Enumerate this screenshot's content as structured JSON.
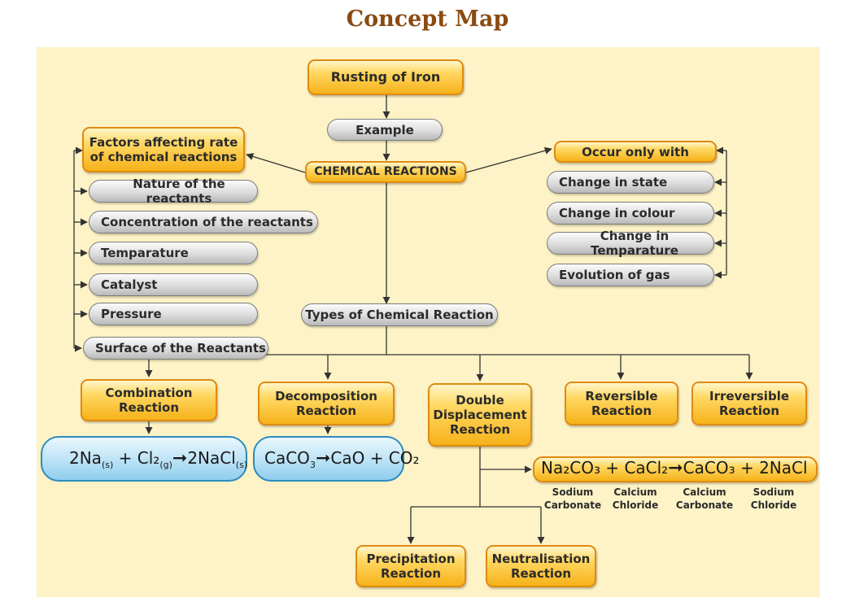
{
  "title": "Concept Map",
  "nodes": {
    "rusting": "Rusting of Iron",
    "example": "Example",
    "chemical_reactions": "CHEMICAL REACTIONS",
    "factors": "Factors affecting rate of chemical reactions",
    "occur": "Occur only with",
    "types": "Types of Chemical Reaction"
  },
  "factors": [
    "Nature of the reactants",
    "Concentration of the reactants",
    "Temparature",
    "Catalyst",
    "Pressure",
    "Surface of the Reactants"
  ],
  "changes": [
    "Change in state",
    "Change in colour",
    "Change in Temparature",
    "Evolution of gas"
  ],
  "types": {
    "combination": "Combination Reaction",
    "decomposition": "Decomposition Reaction",
    "double_displacement": "Double Displacement Reaction",
    "reversible": "Reversible Reaction",
    "irreversible": "Irreversible Reaction",
    "precipitation": "Precipitation Reaction",
    "neutralisation": "Neutralisation Reaction"
  },
  "equations": {
    "combination": {
      "na": "2Na",
      "na_state": "(s)",
      "plus": "+",
      "cl": "Cl₂",
      "cl_state": "(g)",
      "prod": "2NaCl",
      "prod_state": "(s)"
    },
    "decomposition": {
      "caco": "CaCO",
      "sub3": "3",
      "products": "CaO + CO₂"
    },
    "double_displacement": {
      "r1": "Na₂CO₃",
      "r2": "+ CaCl₂",
      "p1": "CaCO₃",
      "p2": "+ 2NaCl"
    }
  },
  "compound_labels": [
    "Sodium Carbonate",
    "Calcium Chloride",
    "Calcium Carbonate",
    "Sodium Chloride"
  ],
  "colors": {
    "title": "#8a4b12",
    "background": "#fdf3c6",
    "gold_border": "#e08a11",
    "blue_border": "#2d8bc0"
  }
}
